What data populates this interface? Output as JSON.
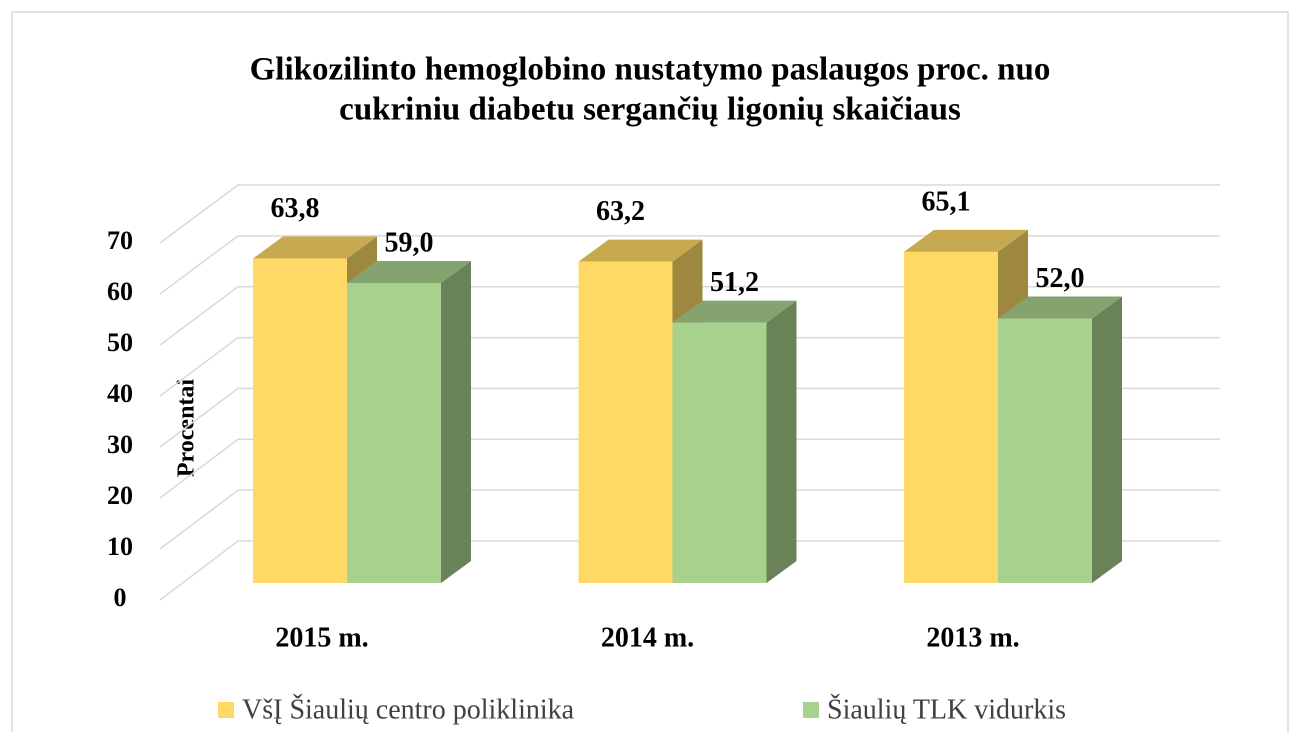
{
  "chart_data": {
    "type": "bar3d",
    "title": "Glikozilinto hemoglobino nustatymo paslaugos proc. nuo",
    "title_line2": "cukriniu diabetu sergančių ligonių skaičiaus",
    "y_axis_label": "Procentai",
    "categories": [
      "2015 m.",
      "2014 m.",
      "2013 m."
    ],
    "series": [
      {
        "name": "VšĮ Šiaulių centro poliklinika",
        "color": "#FFD966",
        "values": [
          63.8,
          63.2,
          65.1
        ],
        "value_labels": [
          "63,8",
          "63,2",
          "65,1"
        ]
      },
      {
        "name": "Šiaulių TLK vidurkis",
        "color": "#A9D18E",
        "values": [
          59.0,
          51.2,
          52.0
        ],
        "value_labels": [
          "59,0",
          "51,2",
          "52,0"
        ]
      }
    ],
    "ylim": [
      0,
      70
    ],
    "yticks": [
      0,
      10,
      20,
      30,
      40,
      50,
      60,
      70
    ],
    "grid": true,
    "legend": "bottom"
  }
}
